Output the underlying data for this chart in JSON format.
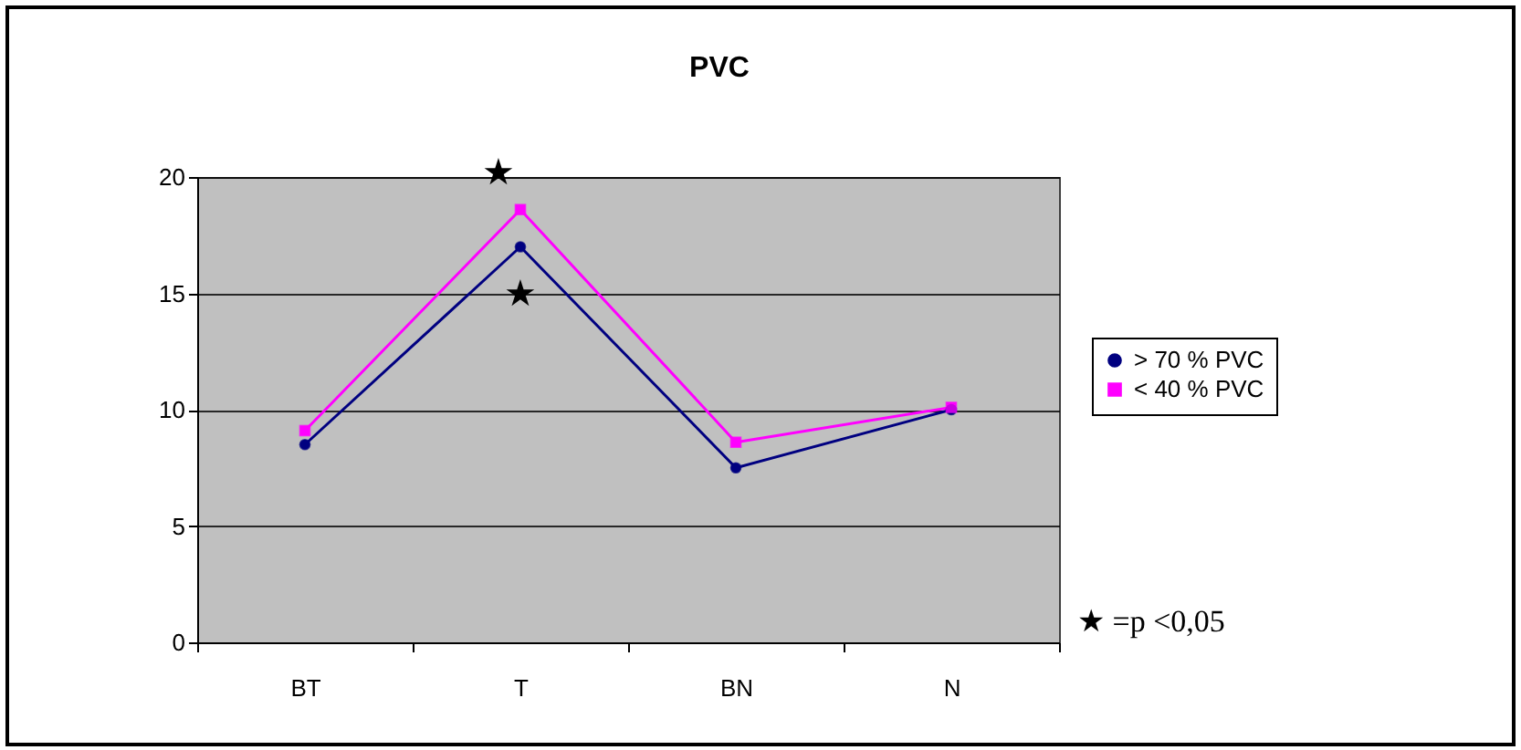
{
  "chart_data": {
    "type": "line",
    "title": "PVC",
    "categories": [
      "BT",
      "T",
      "BN",
      "N"
    ],
    "series": [
      {
        "name": "> 70 % PVC",
        "color": "#000080",
        "marker": "circle",
        "values": [
          8.5,
          17.0,
          7.5,
          10.0
        ]
      },
      {
        "name": "< 40 % PVC",
        "color": "#ff00ff",
        "marker": "square",
        "values": [
          9.1,
          18.6,
          8.6,
          10.1
        ]
      }
    ],
    "ylim": [
      0,
      20
    ],
    "yticks": [
      0,
      5,
      10,
      15,
      20
    ],
    "grid": "y",
    "legend": "right",
    "annotations": [
      {
        "text": "★",
        "x": "T",
        "y": 18.6
      },
      {
        "text": "★",
        "x": "T",
        "y": 17.0
      },
      "★ =p <0,05"
    ]
  }
}
